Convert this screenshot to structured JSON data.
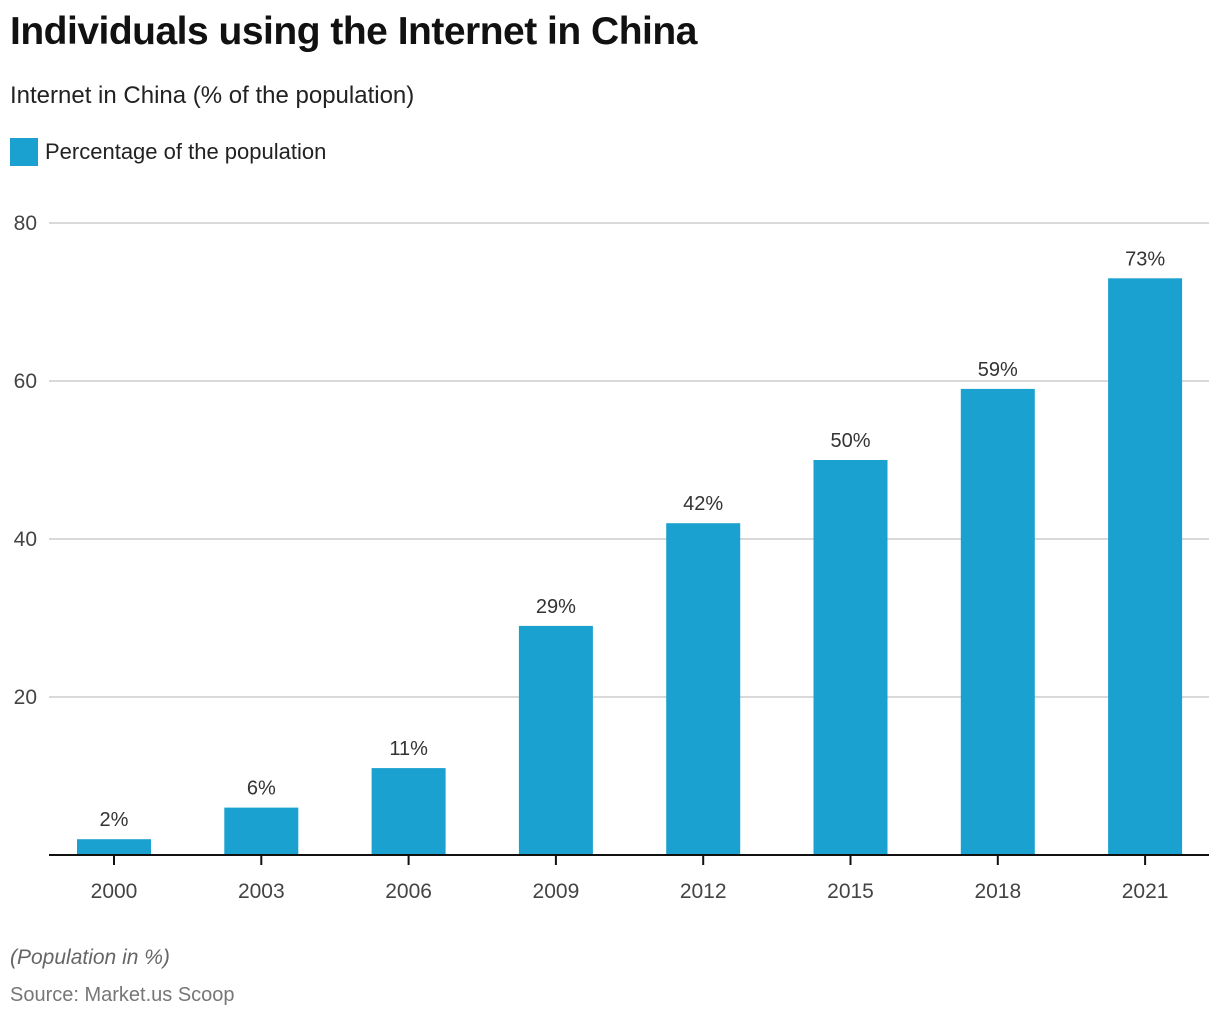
{
  "header": {
    "title": "Individuals using the Internet in China",
    "subtitle": "Internet in China (% of the population)"
  },
  "legend": {
    "label": "Percentage of the population",
    "color": "#1aa1cf"
  },
  "footer": {
    "note": "(Population in %)",
    "source": "Source: Market.us Scoop"
  },
  "chart_data": {
    "type": "bar",
    "title": "Individuals using the Internet in China",
    "subtitle": "Internet in China (% of the population)",
    "xlabel": "",
    "ylabel": "",
    "categories": [
      "2000",
      "2003",
      "2006",
      "2009",
      "2012",
      "2015",
      "2018",
      "2021"
    ],
    "series": [
      {
        "name": "Percentage of the population",
        "values": [
          2,
          6,
          11,
          29,
          42,
          50,
          59,
          73
        ],
        "labels": [
          "2%",
          "6%",
          "11%",
          "29%",
          "42%",
          "50%",
          "59%",
          "73%"
        ],
        "color": "#1aa1cf"
      }
    ],
    "ylim": [
      0,
      80
    ],
    "yticks": [
      20,
      40,
      60,
      80
    ],
    "ytick_labels": [
      "20",
      "40",
      "60",
      "80"
    ],
    "grid": true,
    "legend_position": "top-left"
  }
}
